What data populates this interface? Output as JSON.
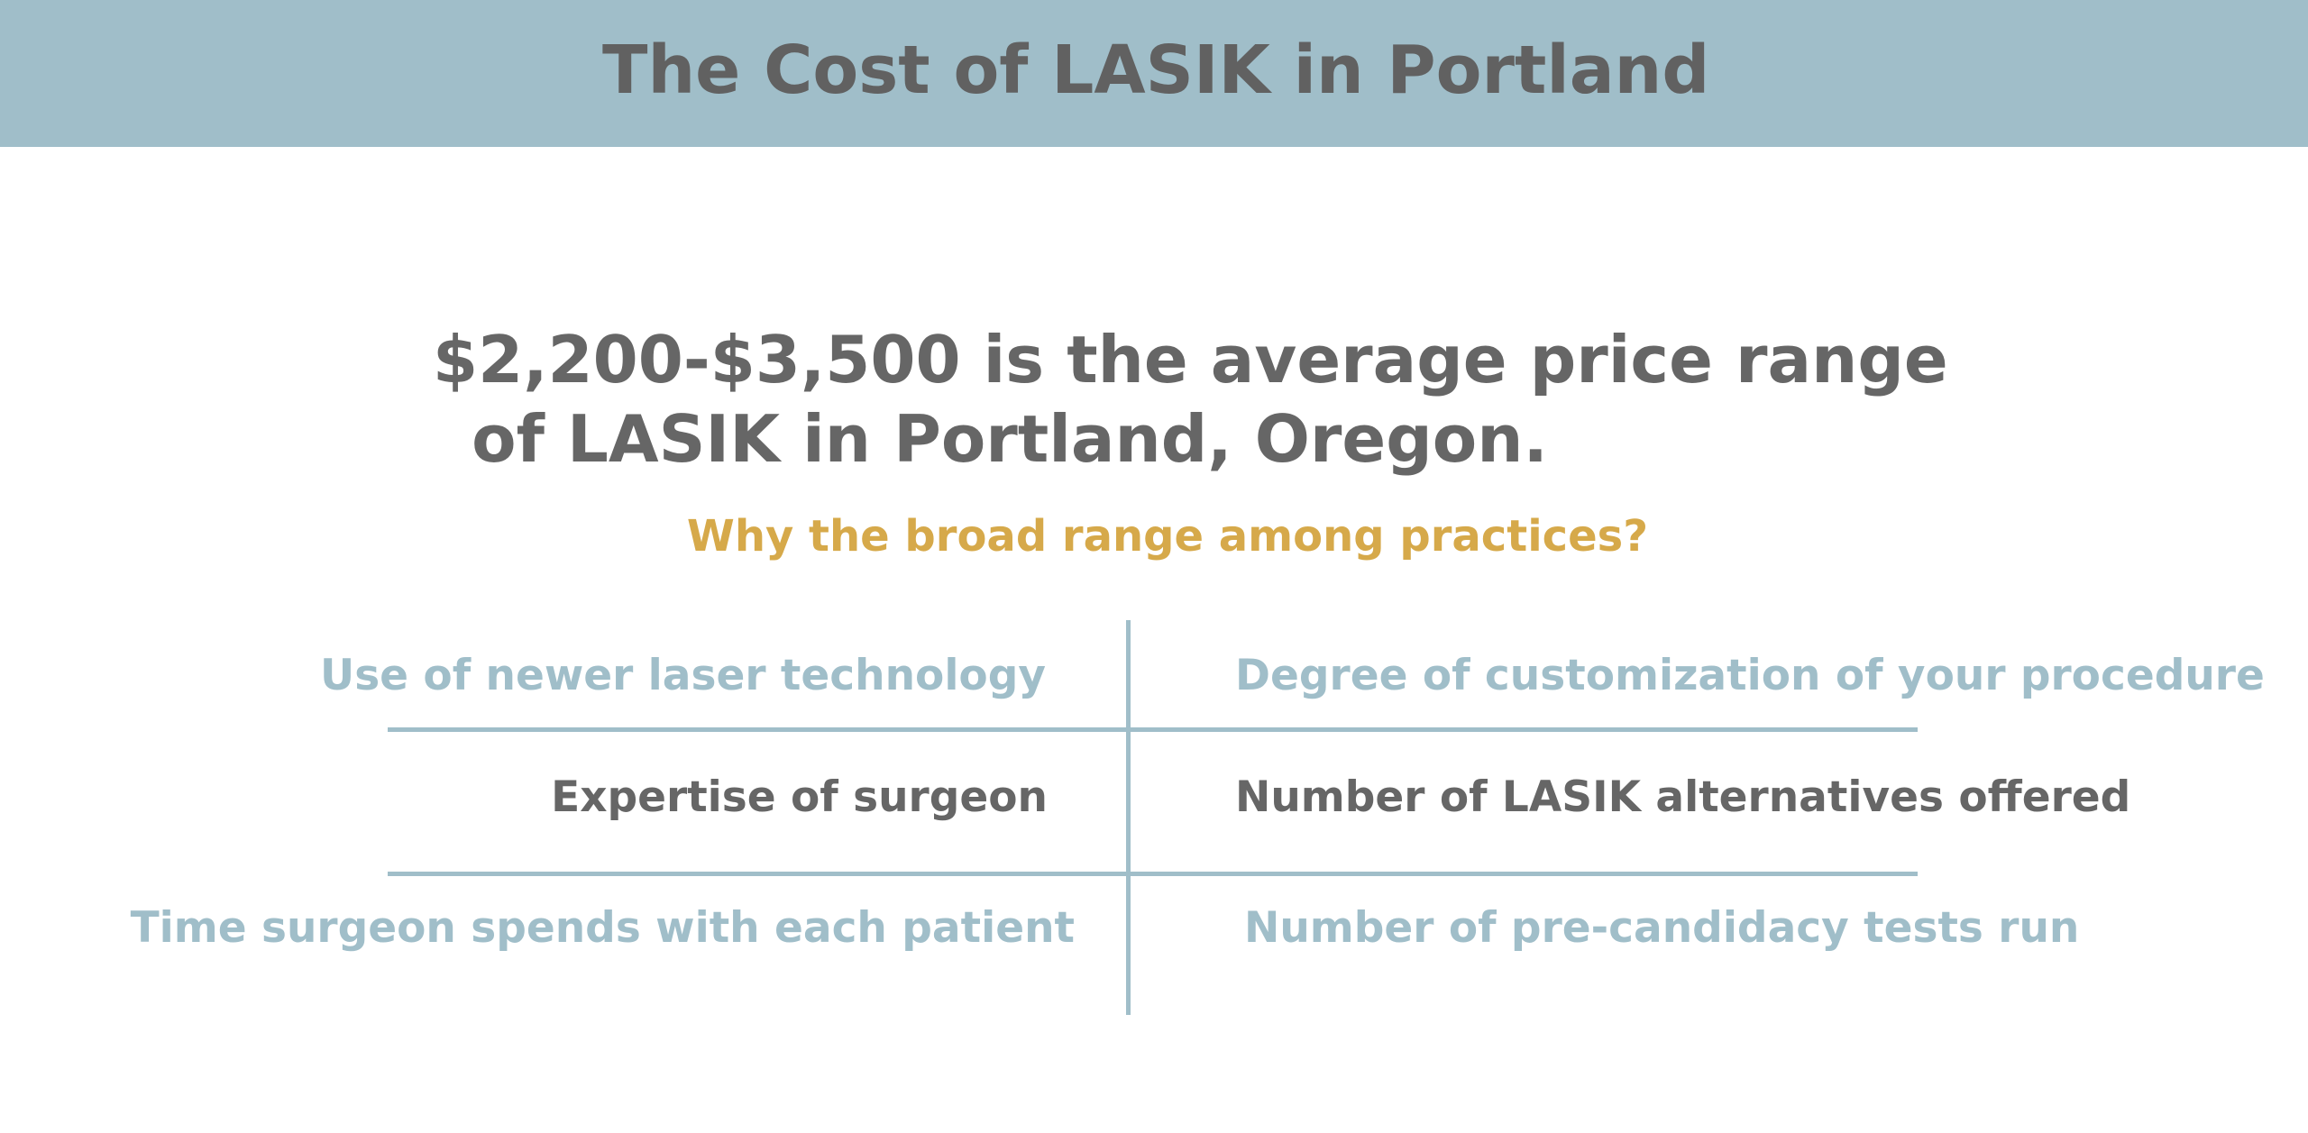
{
  "banner": {
    "title": "The Cost of LASIK in Portland"
  },
  "headline": {
    "line1": "$2,200-$3,500 is the average price range",
    "line2": "of LASIK in Portland, Oregon."
  },
  "question": "Why the broad range among practices?",
  "factors": {
    "row1": {
      "left": "Use of newer laser technology",
      "right": "Degree of customization of your procedure"
    },
    "row2": {
      "left": "Expertise of surgeon",
      "right": "Number of LASIK alternatives offered"
    },
    "row3": {
      "left": "Time surgeon spends with each patient",
      "right": "Number of pre-candidacy tests run"
    }
  },
  "colors": {
    "banner_bg": "#a0bec9",
    "dark_text": "#666666",
    "accent_gold": "#d6a94a",
    "light_blue_text": "#a0bec9",
    "divider": "#a0bec9"
  }
}
